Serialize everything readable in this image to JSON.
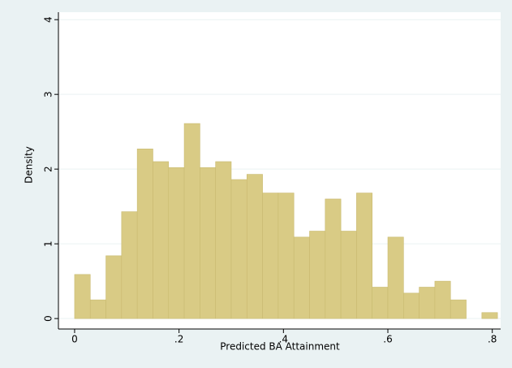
{
  "chart_data": {
    "type": "histogram",
    "x_label": "Predicted BA Attainment",
    "y_label": "Density",
    "bins": [
      0,
      0.03,
      0.06,
      0.09,
      0.12,
      0.15,
      0.18,
      0.21,
      0.24,
      0.27,
      0.3,
      0.33,
      0.36,
      0.39,
      0.42,
      0.45,
      0.48,
      0.51,
      0.54,
      0.57,
      0.6,
      0.63,
      0.66,
      0.69,
      0.72,
      0.75,
      0.78,
      0.81
    ],
    "values": [
      0.59,
      0.25,
      0.84,
      1.43,
      2.27,
      2.1,
      2.02,
      2.61,
      2.02,
      2.1,
      1.86,
      1.93,
      1.68,
      1.68,
      1.09,
      1.17,
      1.6,
      1.17,
      1.68,
      0.42,
      1.09,
      0.34,
      0.42,
      0.5,
      0.25,
      0,
      0.08
    ],
    "color": "#d9cb85",
    "xlim": [
      -0.031,
      0.816
    ],
    "ylim": [
      -0.14,
      4.1
    ],
    "xticks": [
      0,
      {
        "value": 0.2,
        "label": ".2"
      },
      {
        "value": 0.4,
        "label": ".4"
      },
      {
        "value": 0.6,
        "label": ".6"
      },
      {
        "value": 0.8,
        "label": ".8"
      }
    ],
    "yticks": [
      0,
      1,
      2,
      3,
      4
    ],
    "grid": true
  }
}
